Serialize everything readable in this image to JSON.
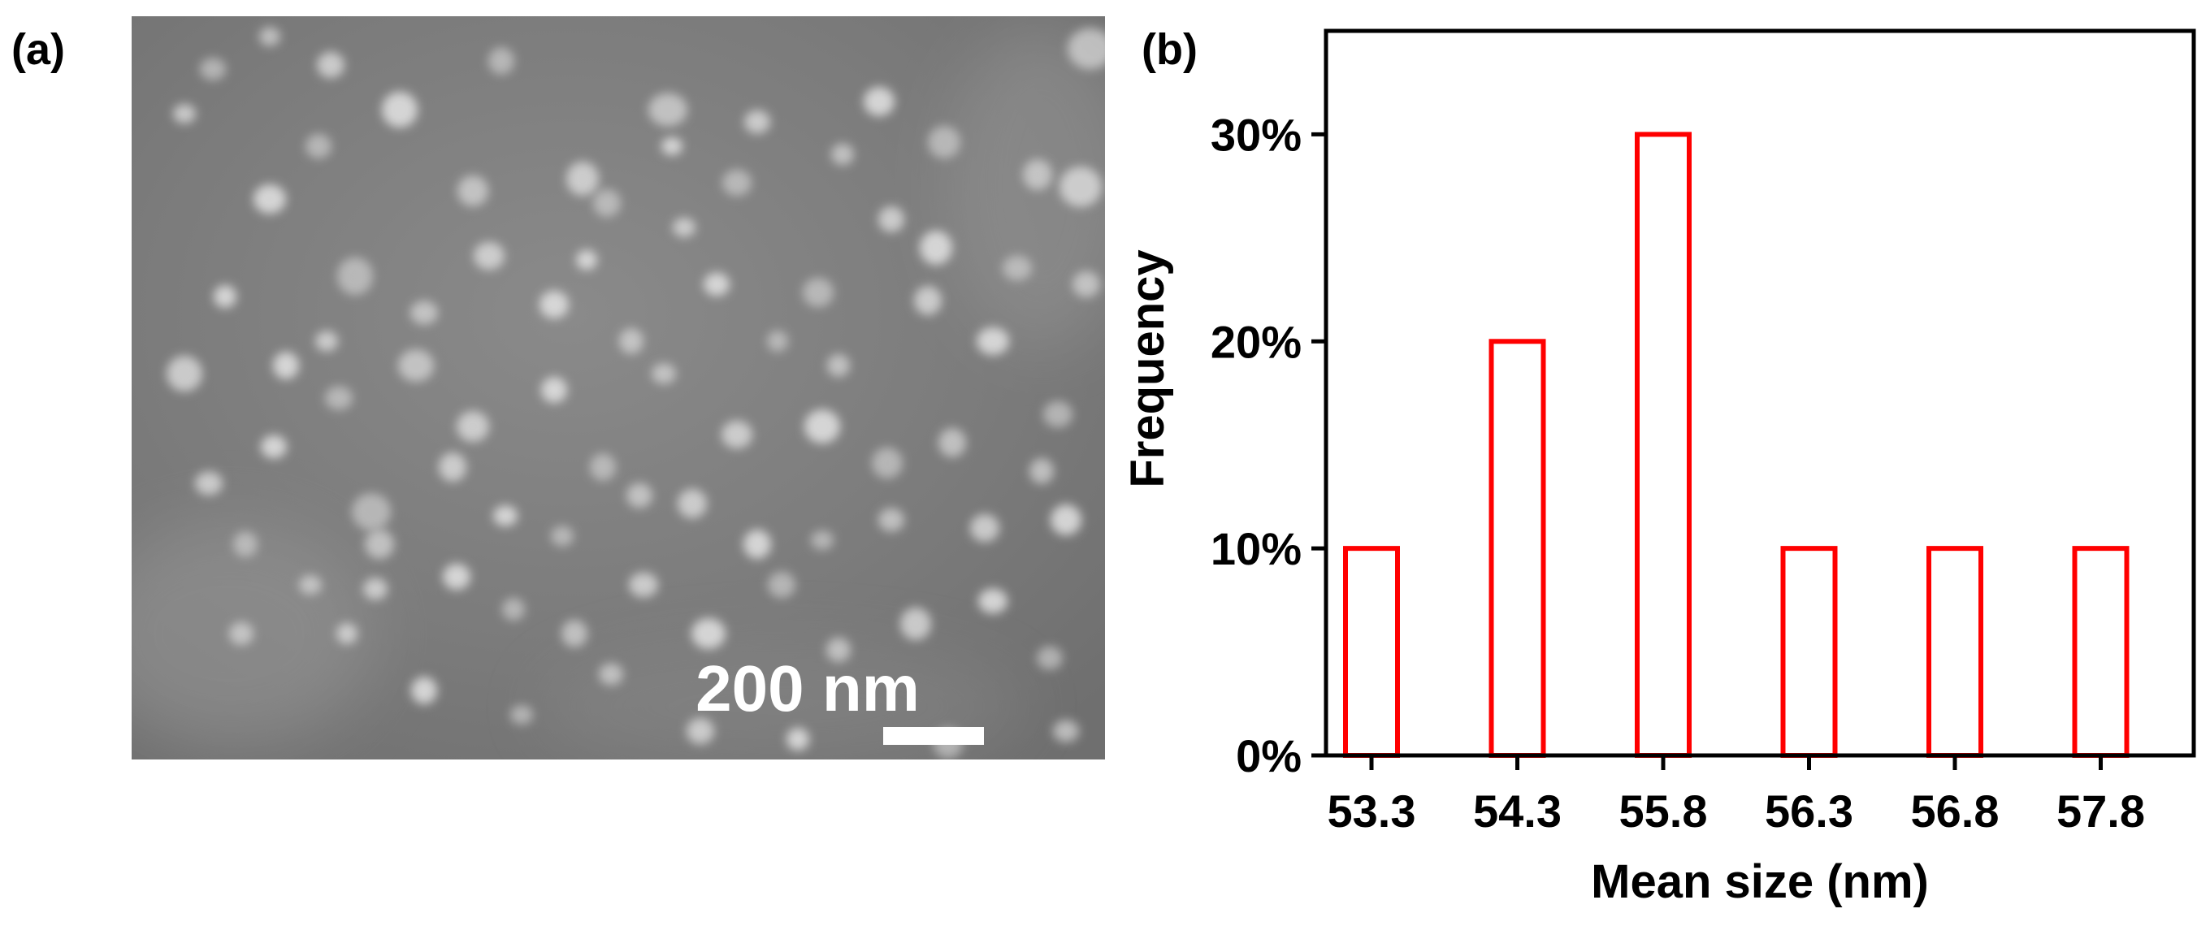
{
  "figure": {
    "panel_a_label": "(a)",
    "panel_b_label": "(b)"
  },
  "sem_image": {
    "scale_bar_label": "200 nm",
    "colors": {
      "background": "#7a7a7a",
      "particle": "#e4e4e4",
      "scale_bar": "#ffffff"
    }
  },
  "chart_data": {
    "type": "bar",
    "categories": [
      "53.3",
      "54.3",
      "55.8",
      "56.3",
      "56.8",
      "57.8"
    ],
    "values": [
      10,
      20,
      30,
      10,
      10,
      10
    ],
    "xlabel": "Mean size (nm)",
    "ylabel": "Frequency",
    "ylim": [
      0,
      35
    ],
    "yticks": [
      0,
      10,
      20,
      30
    ],
    "ytick_labels": [
      "0%",
      "10%",
      "20%",
      "30%"
    ],
    "bar_color": "#ff0000",
    "bar_fill": "#ffffff",
    "grid": false
  }
}
